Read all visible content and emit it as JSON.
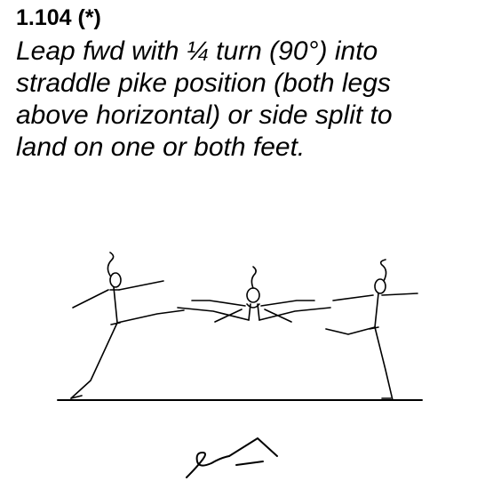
{
  "element": {
    "number": "1.104 (*)",
    "description_lines": [
      "Leap fwd with ¼ turn (90°) into",
      "straddle pike position (both legs",
      "above horizontal) or side split to",
      "land on one or both feet."
    ]
  },
  "illustration": {
    "figure_icon": "gymnast-leap-sequence-icon",
    "symbol_icon": "skill-notation-symbol-icon"
  }
}
